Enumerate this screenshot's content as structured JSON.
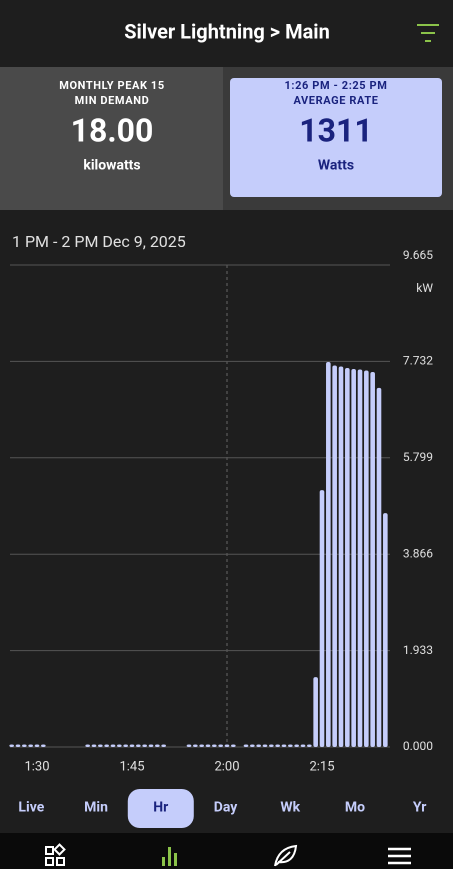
{
  "header": {
    "title": "Silver Lightning > Main"
  },
  "cards": [
    {
      "caption": [
        "MONTHLY PEAK 15",
        "MIN DEMAND"
      ],
      "value": "18.00",
      "unit": "kilowatts"
    },
    {
      "caption": [
        "1:26 PM - 2:25 PM",
        "AVERAGE RATE"
      ],
      "value": "1311",
      "unit": "Watts"
    }
  ],
  "chart_data": {
    "type": "bar",
    "title": "1 PM - 2 PM Dec 9, 2025",
    "y_label": "kW",
    "color": "#c5cdfb",
    "grid": true,
    "categories": [
      null,
      null,
      null,
      null,
      "1:30",
      null,
      null,
      null,
      null,
      null,
      null,
      null,
      null,
      null,
      null,
      null,
      null,
      null,
      null,
      "1:45",
      null,
      null,
      null,
      null,
      null,
      null,
      null,
      null,
      null,
      null,
      null,
      null,
      null,
      null,
      "2:00",
      null,
      null,
      null,
      null,
      null,
      null,
      null,
      null,
      null,
      null,
      null,
      null,
      null,
      null,
      "2:15",
      null,
      null,
      null,
      null,
      null,
      null,
      null,
      null,
      null,
      null
    ],
    "values": [
      0.05,
      0.05,
      0.05,
      0.05,
      0.05,
      0.05,
      null,
      null,
      null,
      null,
      null,
      null,
      0.05,
      0.05,
      0.05,
      0.05,
      0.05,
      0.05,
      0.05,
      0.05,
      0.05,
      0.05,
      0.05,
      0.05,
      0.05,
      null,
      null,
      null,
      0.05,
      0.05,
      0.05,
      0.05,
      0.05,
      0.05,
      0.05,
      0.05,
      null,
      0.05,
      0.05,
      0.05,
      0.05,
      0.05,
      0.05,
      0.05,
      0.05,
      0.05,
      0.05,
      0.05,
      1.4,
      5.15,
      7.72,
      7.65,
      7.63,
      7.6,
      7.58,
      7.57,
      7.55,
      7.52,
      7.2,
      4.69
    ],
    "ylim": [
      0,
      9.665
    ],
    "yticks": [
      {
        "value": 0,
        "label": "0.000"
      },
      1.933,
      3.866,
      5.799,
      7.732,
      9.665
    ]
  },
  "tabs": {
    "items": [
      "Live",
      "Min",
      "Hr",
      "Day",
      "Wk",
      "Mo",
      "Yr"
    ],
    "selected": 2
  }
}
